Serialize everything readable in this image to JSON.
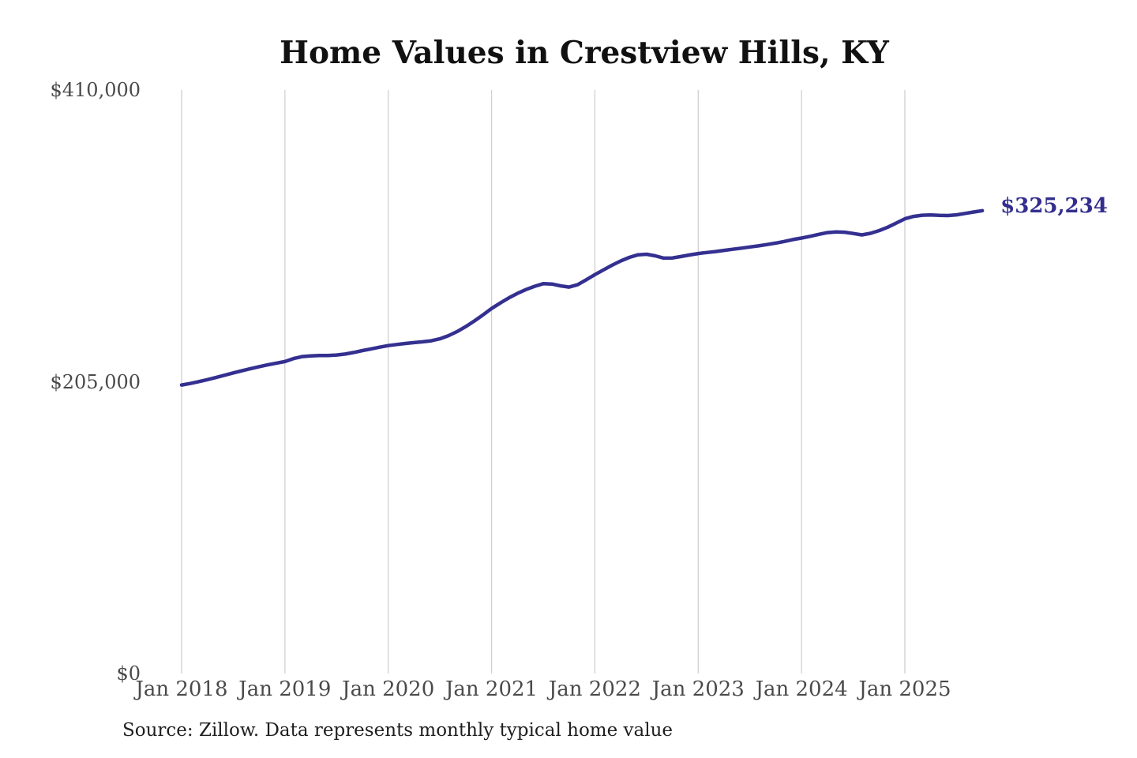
{
  "chart_data": {
    "type": "line",
    "title": "Home Values in Crestview Hills, KY",
    "source_note": "Source: Zillow. Data represents monthly typical home value",
    "latest_value_label": "$325,234",
    "latest_value": 325234,
    "line_color": "#343090",
    "end_label_color": "#332e8e",
    "grid_color": "#d0d0d0",
    "axis_tick_color": "#4a4a4a",
    "title_color": "#111111",
    "background_color": "#ffffff",
    "grid": "vertical-only",
    "legend_position": "none",
    "xlabel": "",
    "ylabel": "",
    "ylim": [
      0,
      410000
    ],
    "y_ticks": [
      {
        "value": 0,
        "label": "$0"
      },
      {
        "value": 205000,
        "label": "$205,000"
      },
      {
        "value": 410000,
        "label": "$410,000"
      }
    ],
    "x_ticks": [
      {
        "month_index": 0,
        "label": "Jan 2018"
      },
      {
        "month_index": 12,
        "label": "Jan 2019"
      },
      {
        "month_index": 24,
        "label": "Jan 2020"
      },
      {
        "month_index": 36,
        "label": "Jan 2021"
      },
      {
        "month_index": 48,
        "label": "Jan 2022"
      },
      {
        "month_index": 60,
        "label": "Jan 2023"
      },
      {
        "month_index": 72,
        "label": "Jan 2024"
      },
      {
        "month_index": 84,
        "label": "Jan 2025"
      }
    ],
    "x": [
      "2018-01",
      "2018-02",
      "2018-03",
      "2018-04",
      "2018-05",
      "2018-06",
      "2018-07",
      "2018-08",
      "2018-09",
      "2018-10",
      "2018-11",
      "2018-12",
      "2019-01",
      "2019-02",
      "2019-03",
      "2019-04",
      "2019-05",
      "2019-06",
      "2019-07",
      "2019-08",
      "2019-09",
      "2019-10",
      "2019-11",
      "2019-12",
      "2020-01",
      "2020-02",
      "2020-03",
      "2020-04",
      "2020-05",
      "2020-06",
      "2020-07",
      "2020-08",
      "2020-09",
      "2020-10",
      "2020-11",
      "2020-12",
      "2021-01",
      "2021-02",
      "2021-03",
      "2021-04",
      "2021-05",
      "2021-06",
      "2021-07",
      "2021-08",
      "2021-09",
      "2021-10",
      "2021-11",
      "2021-12",
      "2022-01",
      "2022-02",
      "2022-03",
      "2022-04",
      "2022-05",
      "2022-06",
      "2022-07",
      "2022-08",
      "2022-09",
      "2022-10",
      "2022-11",
      "2022-12",
      "2023-01",
      "2023-02",
      "2023-03",
      "2023-04",
      "2023-05",
      "2023-06",
      "2023-07",
      "2023-08",
      "2023-09",
      "2023-10",
      "2023-11",
      "2023-12",
      "2024-01",
      "2024-02",
      "2024-03",
      "2024-04",
      "2024-05",
      "2024-06",
      "2024-07",
      "2024-08",
      "2024-09",
      "2024-10",
      "2024-11",
      "2024-12",
      "2025-01",
      "2025-02",
      "2025-03",
      "2025-04",
      "2025-05",
      "2025-06",
      "2025-07",
      "2025-08",
      "2025-09",
      "2025-10"
    ],
    "series": [
      {
        "name": "Monthly typical home value",
        "values": [
          202700,
          203800,
          205100,
          206500,
          208000,
          209600,
          211200,
          212700,
          214200,
          215600,
          216900,
          218100,
          219200,
          221300,
          222700,
          223200,
          223400,
          223500,
          223800,
          224500,
          225600,
          226900,
          228100,
          229300,
          230400,
          231200,
          231900,
          232500,
          233100,
          233800,
          235200,
          237400,
          240300,
          243800,
          247700,
          252000,
          256500,
          260300,
          263900,
          267100,
          269800,
          272100,
          273900,
          273700,
          272400,
          271500,
          273200,
          276700,
          280300,
          283600,
          286900,
          289900,
          292400,
          294200,
          294600,
          293500,
          291900,
          292000,
          293000,
          294100,
          295100,
          295800,
          296500,
          297300,
          298100,
          298900,
          299700,
          300500,
          301400,
          302400,
          303600,
          304900,
          306000,
          307200,
          308600,
          309800,
          310300,
          310100,
          309200,
          308200,
          309300,
          311200,
          313600,
          316500,
          319500,
          321200,
          322000,
          322200,
          321900,
          321800,
          322300,
          323300,
          324300,
          325234
        ]
      }
    ]
  }
}
